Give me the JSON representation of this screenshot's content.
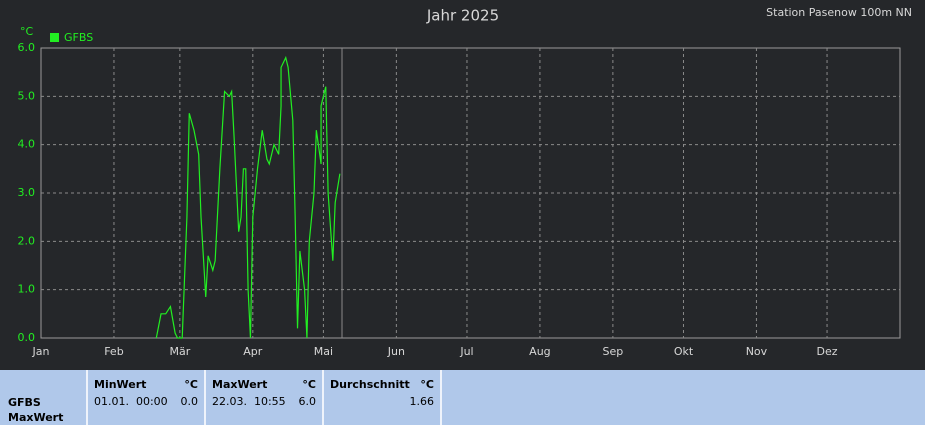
{
  "chart_data": {
    "type": "line",
    "title": "Jahr 2025",
    "station": "Station Pasenow 100m NN",
    "y_unit": "°C",
    "x": [
      49,
      51,
      53,
      55,
      57,
      58,
      60,
      62,
      63,
      65,
      67,
      68,
      70,
      71,
      73,
      74,
      76,
      78,
      80,
      81,
      82,
      84,
      85,
      86,
      87,
      88,
      89,
      90,
      92,
      94,
      96,
      97,
      99,
      101,
      102,
      102,
      104,
      105,
      107,
      108,
      109,
      110,
      112,
      113,
      114,
      116,
      117,
      119,
      119,
      121,
      122,
      124,
      125,
      127
    ],
    "series": [
      {
        "name": "GFBS",
        "color": "#22ee22",
        "values": [
          0.0,
          0.5,
          0.5,
          0.65,
          0.1,
          0.0,
          0.0,
          2.5,
          4.65,
          4.3,
          3.8,
          2.5,
          0.85,
          1.7,
          1.4,
          1.6,
          3.5,
          5.1,
          5.0,
          5.1,
          4.2,
          2.2,
          2.5,
          3.5,
          3.5,
          1.0,
          0.0,
          2.5,
          3.5,
          4.3,
          3.7,
          3.6,
          4.0,
          3.8,
          4.8,
          5.6,
          5.8,
          5.6,
          4.5,
          2.5,
          0.2,
          1.8,
          1.0,
          0.0,
          2.0,
          3.0,
          4.3,
          3.6,
          4.8,
          5.2,
          3.0,
          1.6,
          2.8,
          3.4
        ]
      }
    ],
    "xlim": [
      0,
      365
    ],
    "xticks": [
      {
        "value": 0,
        "label": "Jan"
      },
      {
        "value": 31,
        "label": "Feb"
      },
      {
        "value": 59,
        "label": "Mär"
      },
      {
        "value": 90,
        "label": "Apr"
      },
      {
        "value": 120,
        "label": "Mai"
      },
      {
        "value": 151,
        "label": "Jun"
      },
      {
        "value": 181,
        "label": "Jul"
      },
      {
        "value": 212,
        "label": "Aug"
      },
      {
        "value": 243,
        "label": "Sep"
      },
      {
        "value": 273,
        "label": "Okt"
      },
      {
        "value": 304,
        "label": "Nov"
      },
      {
        "value": 334,
        "label": "Dez"
      }
    ],
    "ylim": [
      0,
      6
    ],
    "yticks": [
      {
        "value": 0,
        "label": "0.0"
      },
      {
        "value": 1,
        "label": "1.0"
      },
      {
        "value": 2,
        "label": "2.0"
      },
      {
        "value": 3,
        "label": "3.0"
      },
      {
        "value": 4,
        "label": "4.0"
      },
      {
        "value": 5,
        "label": "5.0"
      },
      {
        "value": 6,
        "label": "6.0"
      }
    ],
    "grid": true
  },
  "summary": {
    "row_label": [
      "GFBS",
      "MaxWert"
    ],
    "columns": [
      {
        "title": "MinWert",
        "unit": "°C",
        "time": "01.01.  00:00",
        "value": "0.0"
      },
      {
        "title": "MaxWert",
        "unit": "°C",
        "time": "22.03.  10:55",
        "value": "6.0"
      },
      {
        "title": "Durchschnitt",
        "unit": "°C",
        "value": "1.66"
      }
    ]
  }
}
